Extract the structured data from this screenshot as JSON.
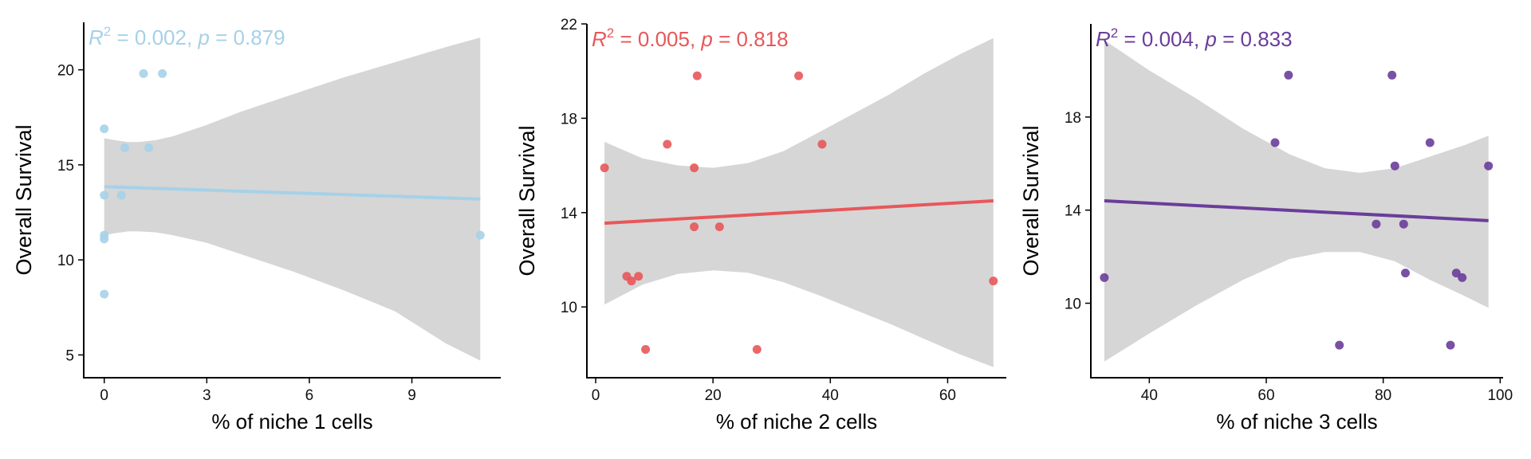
{
  "colors": {
    "background": "#ffffff",
    "band": "#d6d6d6",
    "axis": "#000000"
  },
  "chart_data": [
    {
      "type": "scatter",
      "xlabel": "% of niche 1 cells",
      "ylabel": "Overall Survival",
      "xlim": [
        -0.6,
        11.6
      ],
      "ylim": [
        3.8,
        22.5
      ],
      "xticks": [
        0,
        3,
        6,
        9
      ],
      "yticks": [
        5,
        10,
        15,
        20
      ],
      "color": "#a6d1e8",
      "stat": {
        "prefix": "R",
        "superscript": "2",
        "r2_value": " = 0.002, ",
        "p_label": "p",
        "p_value": " = 0.879"
      },
      "points": [
        {
          "x": 0.0,
          "y": 16.9
        },
        {
          "x": 0.0,
          "y": 13.4
        },
        {
          "x": 0.0,
          "y": 11.3
        },
        {
          "x": 0.0,
          "y": 11.1
        },
        {
          "x": 0.0,
          "y": 8.2
        },
        {
          "x": 0.5,
          "y": 13.4
        },
        {
          "x": 0.6,
          "y": 15.9
        },
        {
          "x": 1.15,
          "y": 19.8
        },
        {
          "x": 1.3,
          "y": 15.9
        },
        {
          "x": 1.7,
          "y": 19.8
        },
        {
          "x": 11.0,
          "y": 11.3
        }
      ],
      "fit": {
        "x": [
          0.0,
          11.0
        ],
        "y": [
          13.85,
          13.2
        ]
      },
      "ci": {
        "x": [
          0.0,
          0.3,
          0.7,
          1.0,
          1.5,
          2.0,
          3.0,
          4.0,
          5.5,
          7.0,
          8.5,
          10.0,
          11.0
        ],
        "upper": [
          16.4,
          16.3,
          16.2,
          16.2,
          16.3,
          16.5,
          17.1,
          17.8,
          18.7,
          19.6,
          20.4,
          21.2,
          21.7
        ],
        "lower": [
          11.3,
          11.4,
          11.5,
          11.5,
          11.45,
          11.3,
          10.9,
          10.3,
          9.4,
          8.4,
          7.3,
          5.6,
          4.7
        ]
      }
    },
    {
      "type": "scatter",
      "xlabel": "% of niche 2 cells",
      "ylabel": "Overall Survival",
      "xlim": [
        -1.5,
        70.0
      ],
      "ylim": [
        7.0,
        22.0
      ],
      "xticks": [
        0,
        20,
        40,
        60
      ],
      "yticks": [
        10,
        14,
        18,
        22
      ],
      "color": "#e8575a",
      "stat": {
        "prefix": "R",
        "superscript": "2",
        "r2_value": " = 0.005, ",
        "p_label": "p",
        "p_value": " = 0.818"
      },
      "points": [
        {
          "x": 1.5,
          "y": 15.9
        },
        {
          "x": 5.3,
          "y": 11.3
        },
        {
          "x": 6.1,
          "y": 11.1
        },
        {
          "x": 7.3,
          "y": 11.3
        },
        {
          "x": 8.5,
          "y": 8.2
        },
        {
          "x": 12.2,
          "y": 16.9
        },
        {
          "x": 16.8,
          "y": 13.4
        },
        {
          "x": 16.8,
          "y": 15.9
        },
        {
          "x": 17.3,
          "y": 19.8
        },
        {
          "x": 21.1,
          "y": 13.4
        },
        {
          "x": 27.5,
          "y": 8.2
        },
        {
          "x": 34.6,
          "y": 19.8
        },
        {
          "x": 38.6,
          "y": 16.9
        },
        {
          "x": 67.8,
          "y": 11.1
        }
      ],
      "fit": {
        "x": [
          1.5,
          67.8
        ],
        "y": [
          13.55,
          14.5
        ]
      },
      "ci": {
        "x": [
          1.5,
          8.0,
          14.0,
          20.0,
          26.0,
          32.0,
          38.0,
          44.0,
          50.0,
          56.0,
          62.0,
          67.8
        ],
        "upper": [
          17.0,
          16.3,
          16.0,
          15.9,
          16.1,
          16.6,
          17.4,
          18.2,
          19.0,
          19.9,
          20.7,
          21.4
        ],
        "lower": [
          10.1,
          10.95,
          11.4,
          11.55,
          11.45,
          11.05,
          10.5,
          9.9,
          9.3,
          8.65,
          8.0,
          7.45
        ]
      }
    },
    {
      "type": "scatter",
      "xlabel": "% of niche 3 cells",
      "ylabel": "Overall Survival",
      "xlim": [
        30.0,
        100.5
      ],
      "ylim": [
        6.8,
        22.0
      ],
      "xticks": [
        40,
        60,
        80,
        100
      ],
      "yticks": [
        10,
        14,
        18
      ],
      "color": "#6a3d9a",
      "stat": {
        "prefix": "R",
        "superscript": "2",
        "r2_value": " = 0.004, ",
        "p_label": "p",
        "p_value": " = 0.833"
      },
      "points": [
        {
          "x": 32.3,
          "y": 11.1
        },
        {
          "x": 61.5,
          "y": 16.9
        },
        {
          "x": 63.8,
          "y": 19.8
        },
        {
          "x": 72.5,
          "y": 8.2
        },
        {
          "x": 78.8,
          "y": 13.4
        },
        {
          "x": 81.5,
          "y": 19.8
        },
        {
          "x": 82.0,
          "y": 15.9
        },
        {
          "x": 83.5,
          "y": 13.4
        },
        {
          "x": 83.8,
          "y": 11.3
        },
        {
          "x": 88.0,
          "y": 16.9
        },
        {
          "x": 91.5,
          "y": 8.2
        },
        {
          "x": 92.5,
          "y": 11.3
        },
        {
          "x": 93.5,
          "y": 11.1
        },
        {
          "x": 98.0,
          "y": 15.9
        }
      ],
      "fit": {
        "x": [
          32.3,
          98.0
        ],
        "y": [
          14.4,
          13.55
        ]
      },
      "ci": {
        "x": [
          32.3,
          40.0,
          48.0,
          56.0,
          64.0,
          70.0,
          76.0,
          82.0,
          88.0,
          94.0,
          98.0
        ],
        "upper": [
          21.3,
          20.0,
          18.8,
          17.5,
          16.4,
          15.8,
          15.6,
          15.8,
          16.3,
          16.8,
          17.2
        ],
        "lower": [
          7.5,
          8.7,
          9.9,
          11.0,
          11.9,
          12.2,
          12.2,
          11.8,
          11.0,
          10.3,
          9.8
        ]
      }
    }
  ]
}
